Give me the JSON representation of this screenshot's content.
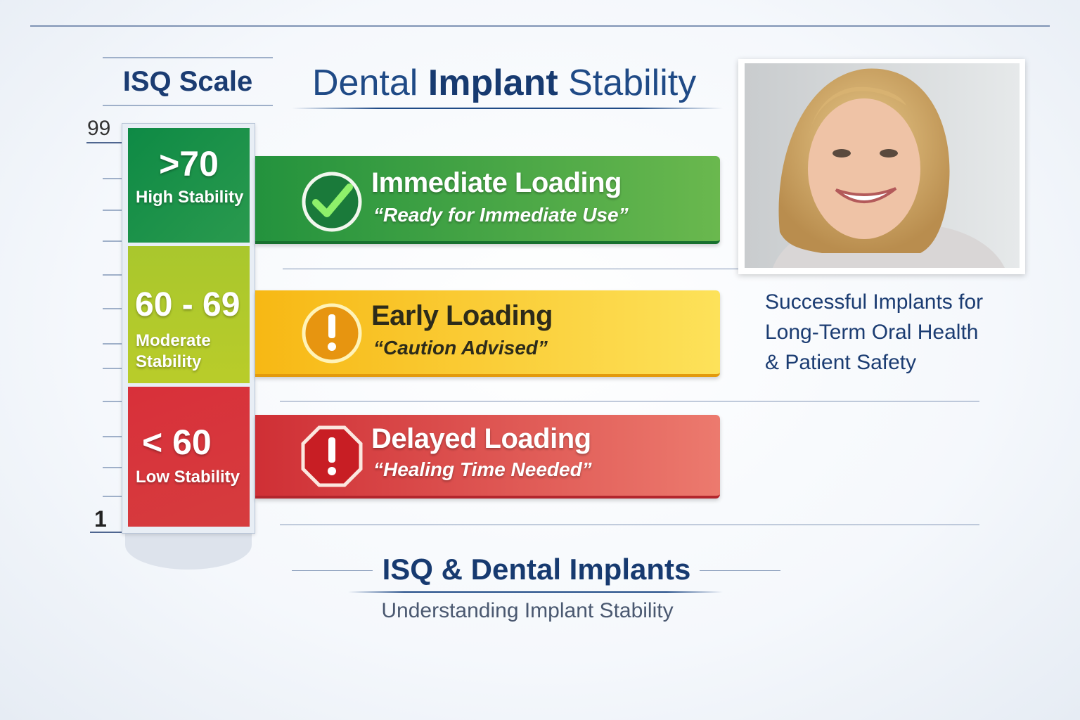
{
  "title": {
    "pre": "Dental ",
    "bold": "Implant",
    "post": " Stability"
  },
  "scale": {
    "title": "ISQ Scale",
    "max_label": "99",
    "min_label": "1",
    "segments": [
      {
        "range": ">70",
        "label": "High Stability",
        "color": "#16914a"
      },
      {
        "range": "60 - 69",
        "label_line1": "Moderate",
        "label_line2": "Stability",
        "color": "#a9c72a"
      },
      {
        "range": "< 60",
        "label": "Low Stability",
        "color": "#d8353a"
      }
    ]
  },
  "loading": [
    {
      "title": "Immediate Loading",
      "subtitle": "“Ready for Immediate Use”",
      "icon": "check-circle-icon",
      "color": "#3fa344"
    },
    {
      "title": "Early Loading",
      "subtitle": "“Caution Advised”",
      "icon": "exclamation-circle-icon",
      "color": "#f8c41c"
    },
    {
      "title": "Delayed Loading",
      "subtitle": "“Healing Time Needed”",
      "icon": "stop-sign-icon",
      "color": "#d9393a"
    }
  ],
  "photo": {
    "caption_lines": [
      "Successful Implants for",
      "Long-Term Oral Health",
      "& Patient Safety"
    ]
  },
  "footer": {
    "title": "ISQ & Dental Implants",
    "subtitle": "Understanding Implant Stability"
  }
}
